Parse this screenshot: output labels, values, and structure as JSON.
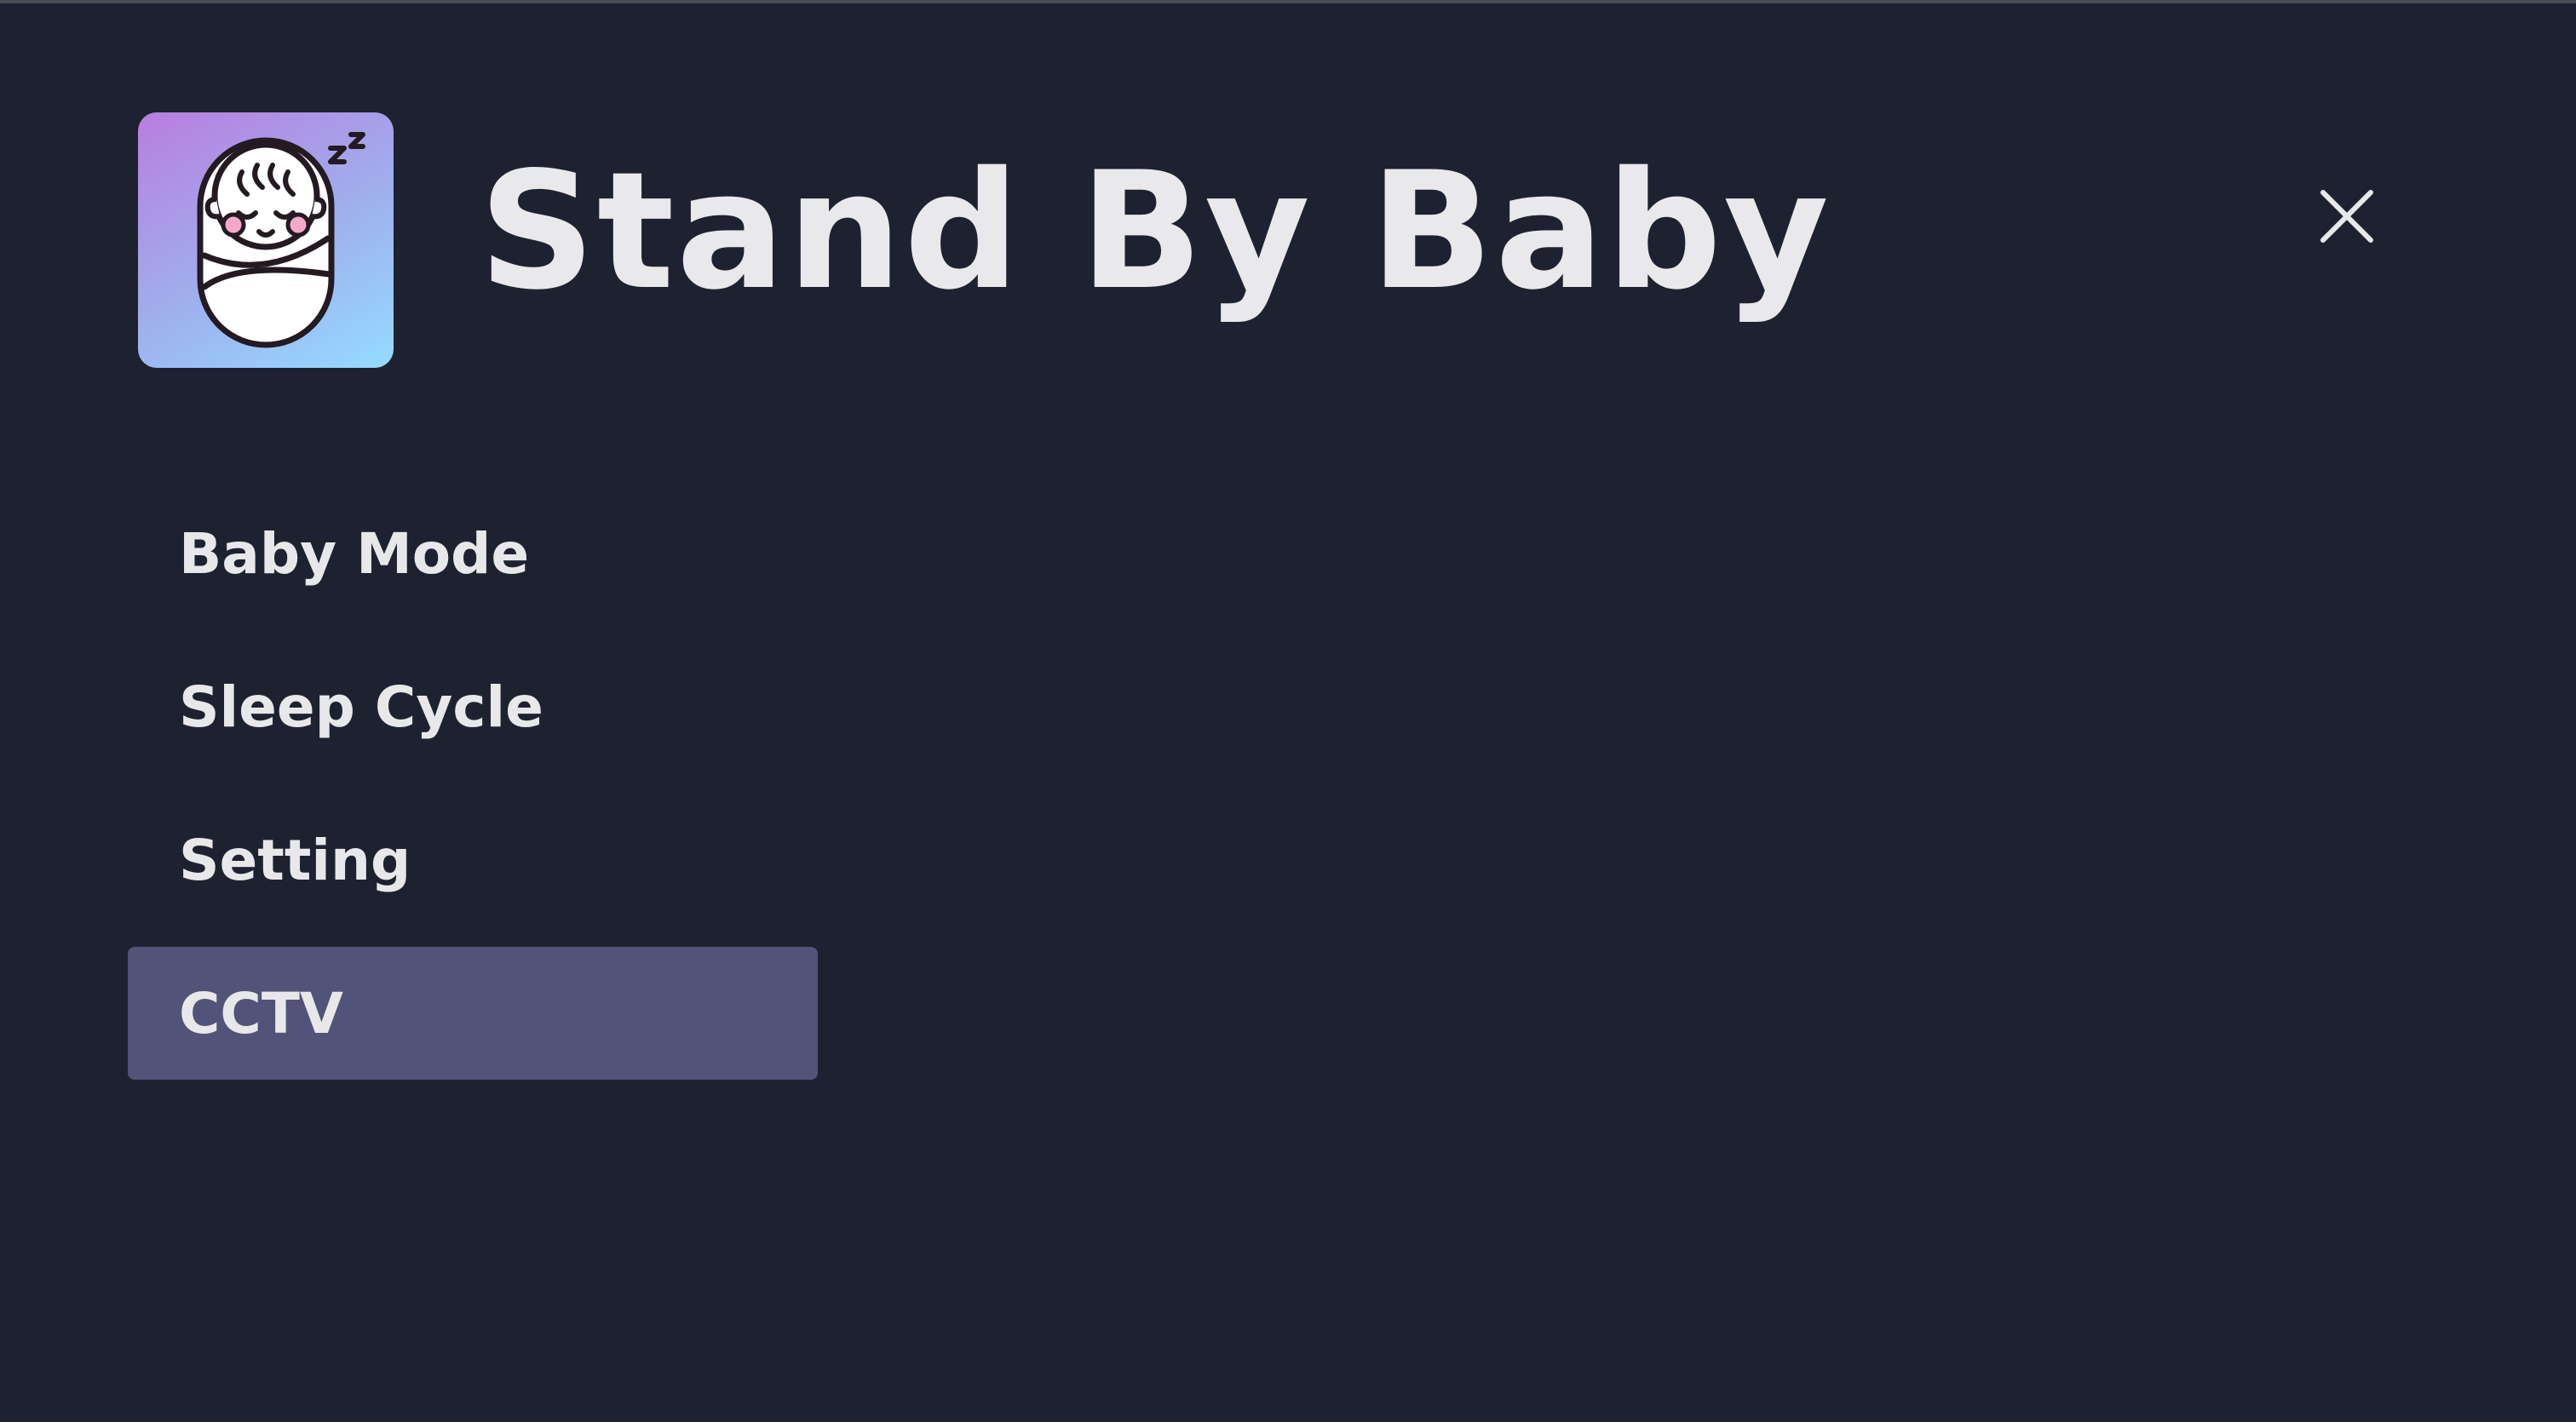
{
  "app": {
    "title": "Stand By Baby",
    "logo_icon": "sleeping-baby-icon",
    "close_icon": "close-icon"
  },
  "menu": {
    "items": [
      {
        "label": "Baby Mode",
        "active": false
      },
      {
        "label": "Sleep Cycle",
        "active": false
      },
      {
        "label": "Setting",
        "active": false
      },
      {
        "label": "CCTV",
        "active": true
      }
    ]
  },
  "colors": {
    "background": "#1e2230",
    "text": "#e8e8ea",
    "active_item": "#515478",
    "logo_gradient_start": "#b87ede",
    "logo_gradient_end": "#94dcff"
  }
}
